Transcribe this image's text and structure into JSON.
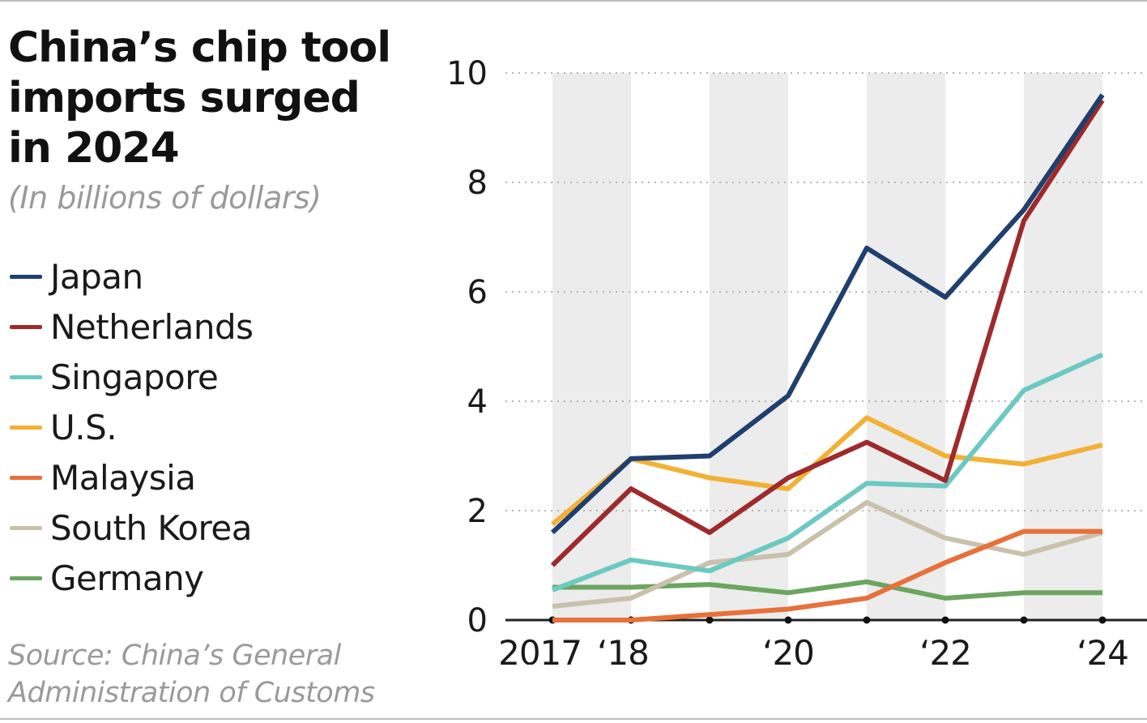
{
  "title": "China’s chip tool imports surged in 2024",
  "title_lines": [
    "China’s chip tool",
    "imports surged",
    "in 2024"
  ],
  "subtitle": "(In billions of dollars)",
  "source_lines": [
    "Source: China’s General",
    "Administration of Customs"
  ],
  "chart_data": {
    "type": "line",
    "title": "China’s chip tool imports surged in 2024",
    "subtitle": "(In billions of dollars)",
    "xlabel": "",
    "ylabel": "",
    "x": [
      2017,
      2018,
      2019,
      2020,
      2021,
      2022,
      2023,
      2024
    ],
    "x_ticks": [
      {
        "x": 2017,
        "label": "2017"
      },
      {
        "x": 2018,
        "label": "‘18"
      },
      {
        "x": 2020,
        "label": "‘20"
      },
      {
        "x": 2022,
        "label": "‘22"
      },
      {
        "x": 2024,
        "label": "‘24"
      }
    ],
    "y_ticks": [
      0,
      2,
      4,
      6,
      8,
      10
    ],
    "ylim": [
      0,
      10
    ],
    "grid": "horizontal dotted",
    "shaded_bands": [
      2017,
      2019,
      2021,
      2023
    ],
    "legend_placement": "left",
    "series": [
      {
        "name": "Japan",
        "color": "#1f3f6e",
        "values": [
          1.6,
          2.95,
          3.0,
          4.1,
          6.8,
          5.9,
          7.5,
          9.6
        ]
      },
      {
        "name": "Netherlands",
        "color": "#9e2a2b",
        "values": [
          1.0,
          2.4,
          1.6,
          2.6,
          3.25,
          2.55,
          7.3,
          9.5
        ]
      },
      {
        "name": "Singapore",
        "color": "#6cc9c2",
        "values": [
          0.55,
          1.1,
          0.9,
          1.5,
          2.5,
          2.45,
          4.2,
          4.85
        ]
      },
      {
        "name": "U.S.",
        "color": "#f2b134",
        "values": [
          1.75,
          2.95,
          2.6,
          2.4,
          3.7,
          3.0,
          2.85,
          3.2
        ]
      },
      {
        "name": "Malaysia",
        "color": "#e8703a",
        "values": [
          0.0,
          0.0,
          0.1,
          0.2,
          0.4,
          1.05,
          1.62,
          1.62
        ]
      },
      {
        "name": "South Korea",
        "color": "#c9c1ab",
        "values": [
          0.25,
          0.4,
          1.05,
          1.2,
          2.15,
          1.5,
          1.2,
          1.6
        ]
      },
      {
        "name": "Germany",
        "color": "#6ca560",
        "values": [
          0.6,
          0.6,
          0.65,
          0.5,
          0.7,
          0.4,
          0.5,
          0.5
        ]
      }
    ]
  }
}
